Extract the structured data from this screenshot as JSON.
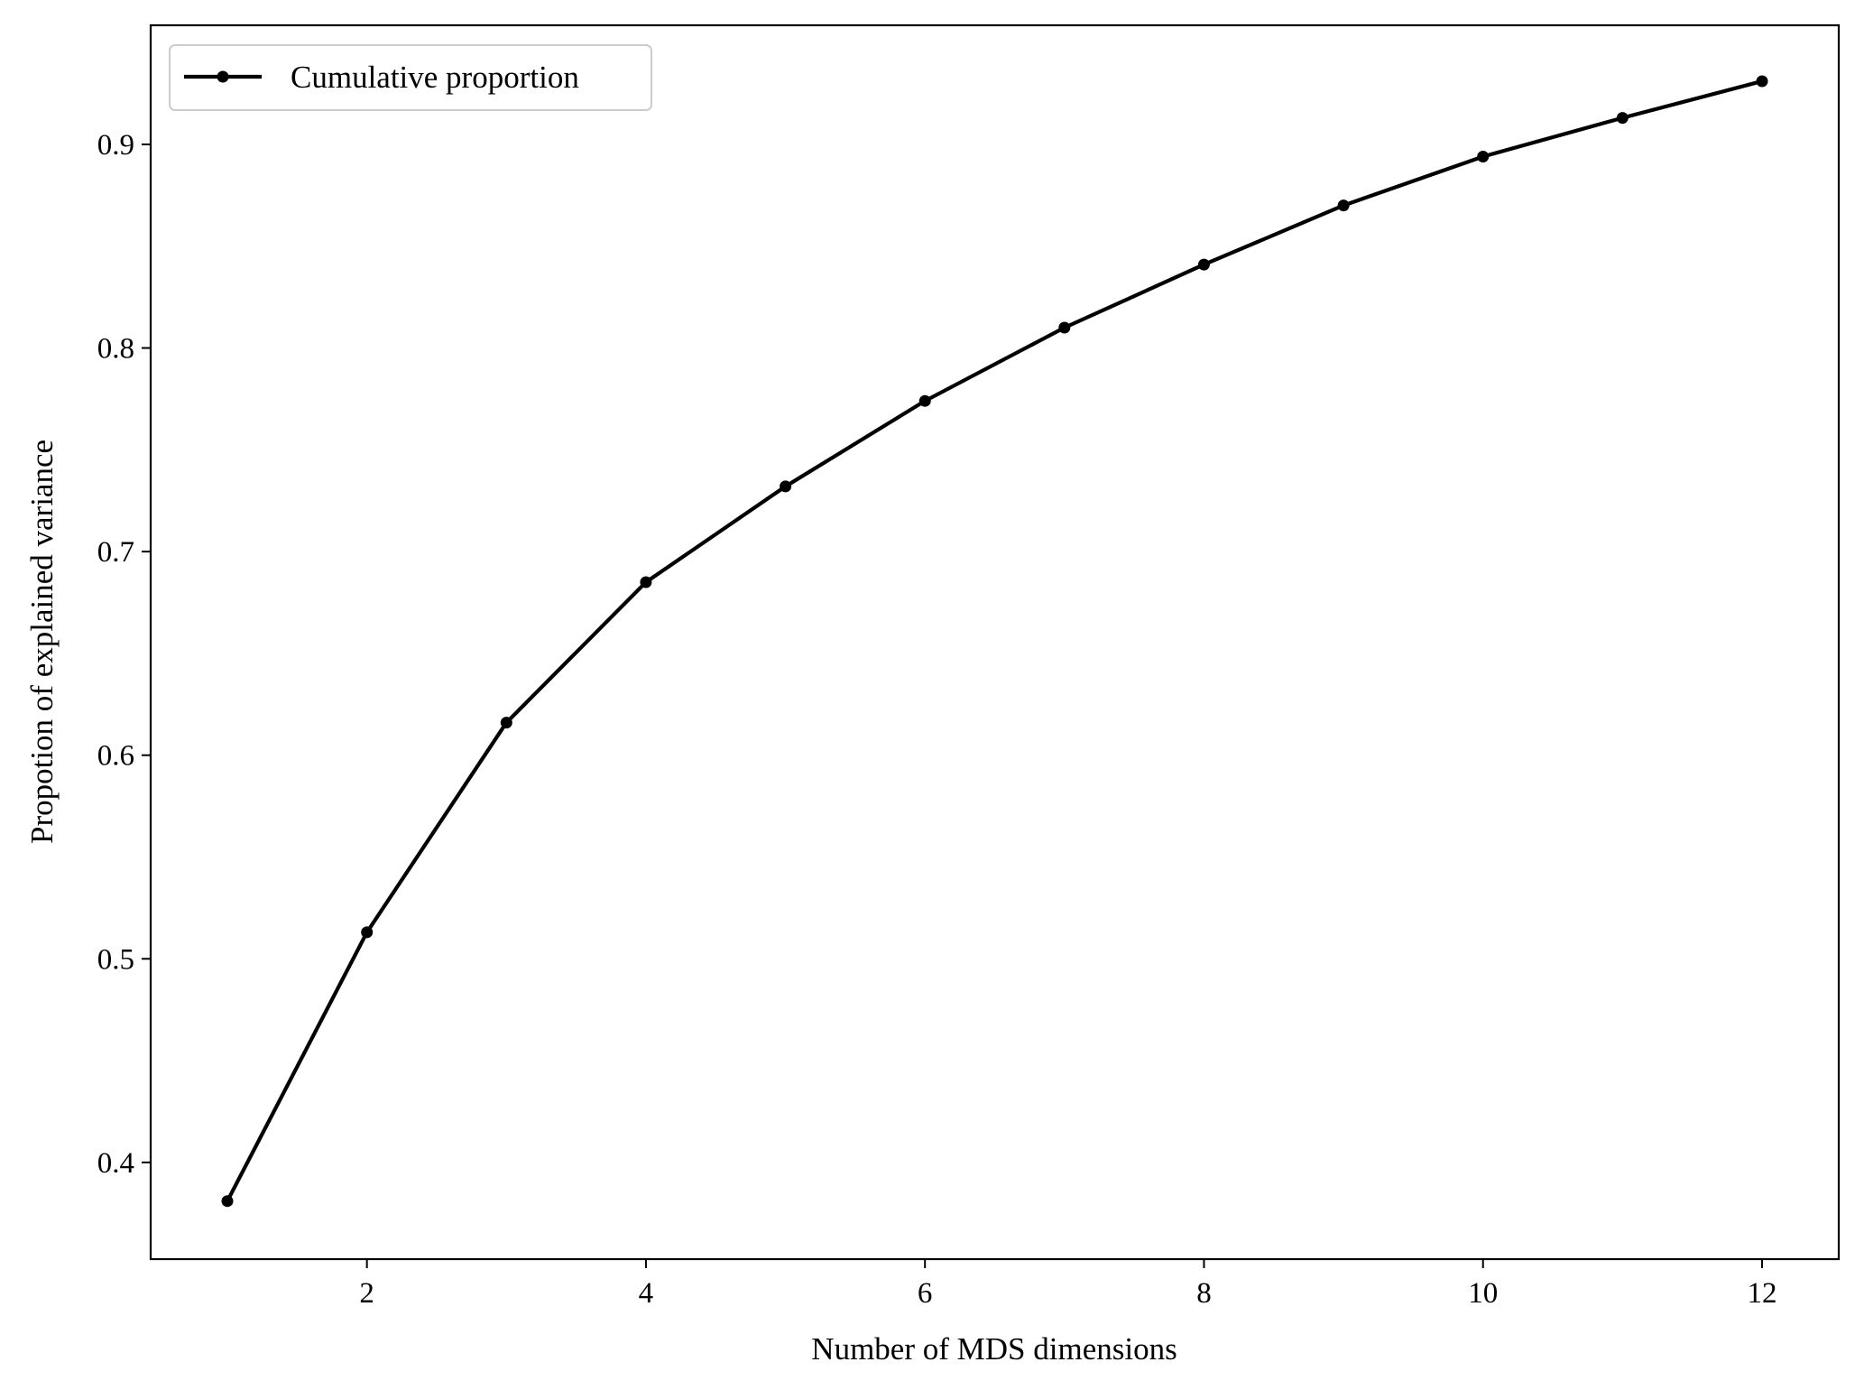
{
  "chart_data": {
    "type": "line",
    "title": "",
    "xlabel": "Number of MDS dimensions",
    "ylabel": "Propotion of explained variance",
    "x": [
      1,
      2,
      3,
      4,
      5,
      6,
      7,
      8,
      9,
      10,
      11,
      12
    ],
    "series": [
      {
        "name": "Cumulative proportion",
        "values": [
          0.381,
          0.513,
          0.616,
          0.685,
          0.732,
          0.774,
          0.81,
          0.841,
          0.87,
          0.894,
          0.913,
          0.931
        ],
        "color": "#000000",
        "marker": "circle"
      }
    ],
    "xlim": [
      0.45,
      12.55
    ],
    "ylim": [
      0.3525,
      0.9585
    ],
    "xticks": [
      2,
      4,
      6,
      8,
      10,
      12
    ],
    "yticks": [
      0.4,
      0.5,
      0.6,
      0.7,
      0.8,
      0.9
    ],
    "xtick_labels": [
      "2",
      "4",
      "6",
      "8",
      "10",
      "12"
    ],
    "ytick_labels": [
      "0.4",
      "0.5",
      "0.6",
      "0.7",
      "0.8",
      "0.9"
    ],
    "grid": false,
    "legend_position": "top-left"
  }
}
